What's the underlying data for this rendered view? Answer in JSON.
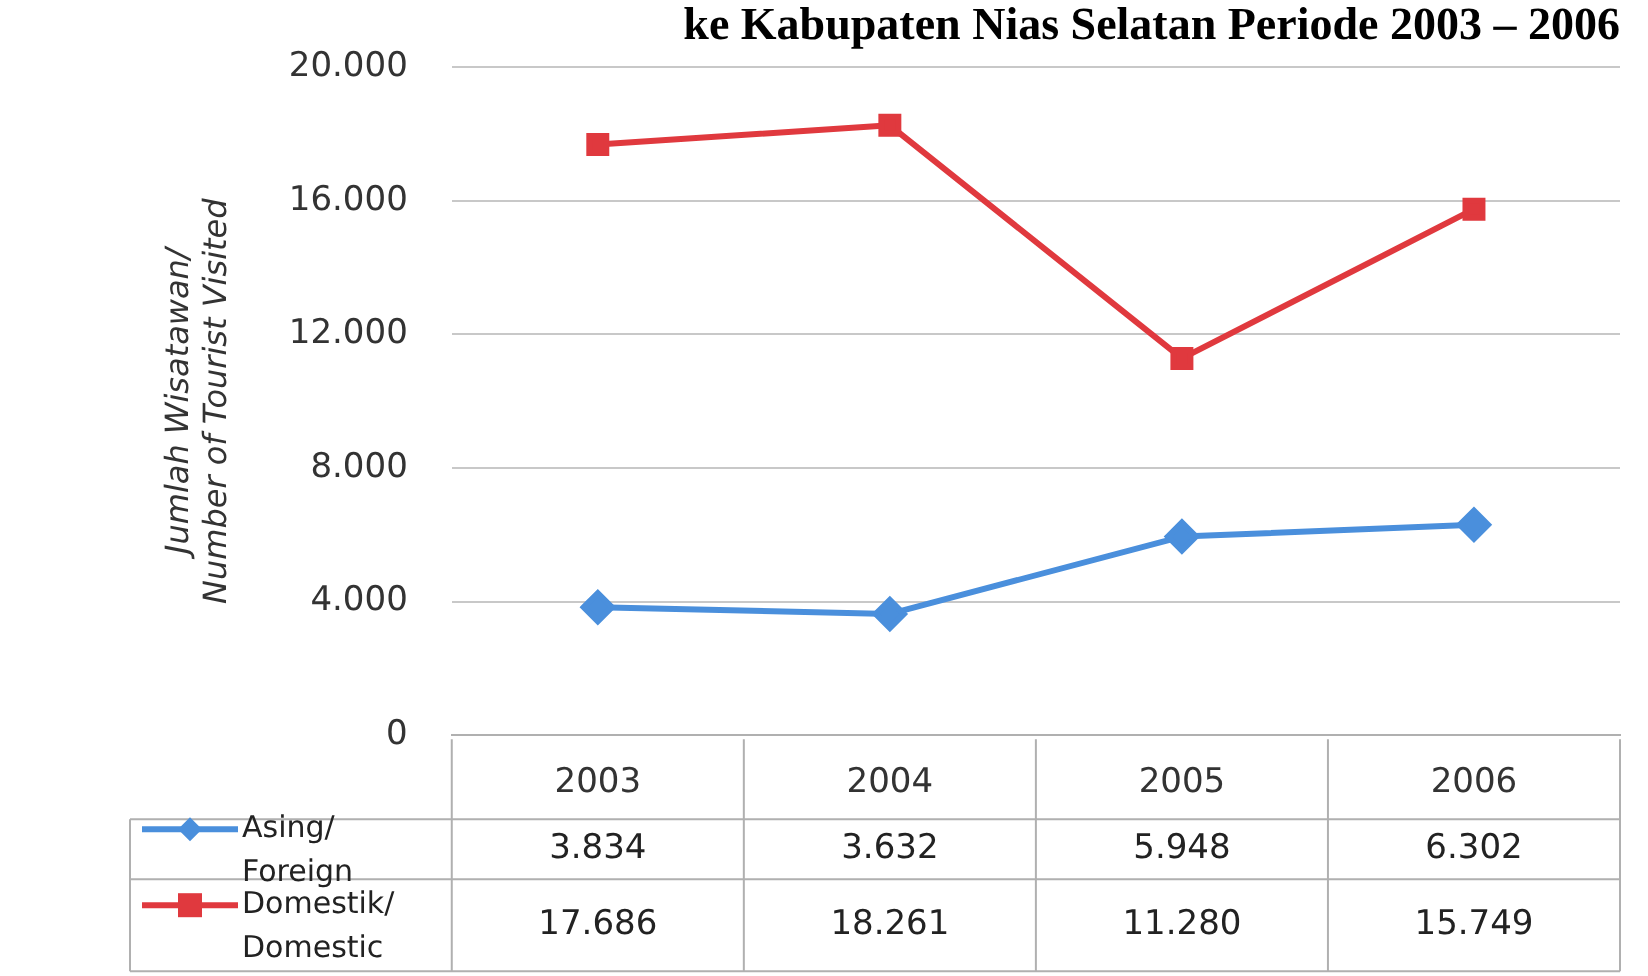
{
  "chart_data": {
    "type": "line",
    "title": "ke Kabupaten Nias Selatan Periode 2003 – 2006",
    "ylabel": "Jumlah Wisatawan/ Number of Tourist Visited",
    "categories": [
      "2003",
      "2004",
      "2005",
      "2006"
    ],
    "series": [
      {
        "name": "Asing/ Foreign",
        "color": "#4a8fdc",
        "values": [
          3834,
          3632,
          5948,
          6302
        ],
        "value_labels": [
          "3.834",
          "3.632",
          "5.948",
          "6.302"
        ],
        "marker": "diamond"
      },
      {
        "name": "Domestik/ Domestic",
        "color": "#e0393e",
        "values": [
          17686,
          18261,
          11280,
          15749
        ],
        "value_labels": [
          "17.686",
          "18.261",
          "11.280",
          "15.749"
        ],
        "marker": "square"
      }
    ],
    "ylim": [
      0,
      20000
    ],
    "yticks": [
      0,
      {
        "value": 4000,
        "label": "4.000"
      },
      {
        "value": 8000,
        "label": "8.000"
      },
      {
        "value": 12000,
        "label": "12.000"
      },
      {
        "value": 16000,
        "label": "16.000"
      },
      {
        "value": 20000,
        "label": "20.000"
      }
    ],
    "grid": "y",
    "legend": "bottom"
  }
}
